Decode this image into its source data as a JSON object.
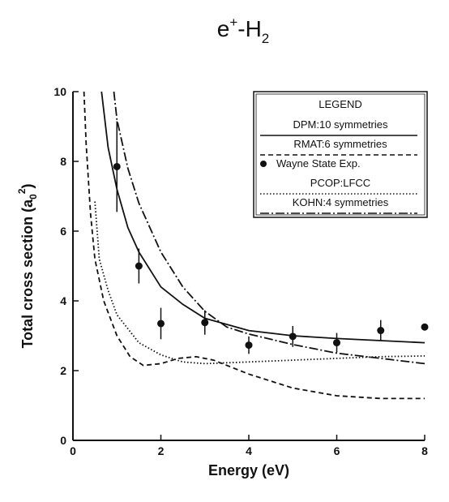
{
  "chart_data": {
    "type": "line",
    "title": [
      "e",
      "+",
      "-H",
      "2"
    ],
    "x_label": "Energy (eV)",
    "y_label": [
      "Total cross section (a",
      "0",
      "2",
      ")"
    ],
    "legend_title": "LEGEND",
    "xlim": [
      0,
      8
    ],
    "ylim": [
      0,
      10
    ],
    "xticks": [
      0,
      2,
      4,
      6,
      8
    ],
    "yticks": [
      0,
      2,
      4,
      6,
      8,
      10
    ],
    "legend": "upper right",
    "series": [
      {
        "name": "DPM:10 symmetries",
        "color": "#111111",
        "style": "solid",
        "x": [
          0.65,
          0.8,
          1,
          1.25,
          1.5,
          2,
          2.5,
          3,
          4,
          5,
          6,
          7,
          8
        ],
        "values": [
          10,
          8.4,
          7.2,
          6.1,
          5.4,
          4.4,
          3.9,
          3.5,
          3.15,
          3.0,
          2.92,
          2.86,
          2.8
        ]
      },
      {
        "name": "RMAT:6 symmetries",
        "color": "#111111",
        "style": "dashed",
        "x": [
          0.25,
          0.3,
          0.4,
          0.5,
          0.7,
          1,
          1.3,
          1.6,
          2,
          2.4,
          2.8,
          3.2,
          4,
          5,
          6,
          7,
          8
        ],
        "values": [
          10,
          8.5,
          6.5,
          5.2,
          4.0,
          3.0,
          2.4,
          2.15,
          2.2,
          2.35,
          2.4,
          2.3,
          1.9,
          1.5,
          1.28,
          1.2,
          1.2
        ]
      },
      {
        "name": "Wayne State Exp.",
        "color": "#111111",
        "style": "markers",
        "x": [
          1,
          1.5,
          2,
          3,
          4,
          5,
          6,
          7,
          8
        ],
        "values": [
          7.85,
          5.0,
          3.35,
          3.38,
          2.73,
          2.98,
          2.8,
          3.15,
          3.25
        ],
        "errors": [
          1.3,
          0.5,
          0.45,
          0.35,
          0.25,
          0.3,
          0.28,
          0.3,
          0.05
        ]
      },
      {
        "name": "PCOP:LFCC",
        "color": "#111111",
        "style": "dotted",
        "x": [
          0.5,
          0.6,
          0.8,
          1,
          1.5,
          2,
          2.5,
          3,
          4,
          5,
          6,
          7,
          8
        ],
        "values": [
          6.85,
          5.2,
          4.3,
          3.6,
          2.8,
          2.45,
          2.25,
          2.2,
          2.25,
          2.3,
          2.35,
          2.4,
          2.42
        ]
      },
      {
        "name": "KOHN:4 symmetries",
        "color": "#111111",
        "style": "dashdot",
        "x": [
          0.93,
          1,
          1.25,
          1.5,
          2,
          2.5,
          3,
          3.5,
          4,
          5,
          6,
          7,
          8
        ],
        "values": [
          10,
          9.2,
          7.8,
          6.8,
          5.4,
          4.4,
          3.7,
          3.25,
          3.05,
          2.75,
          2.5,
          2.35,
          2.2
        ]
      }
    ]
  }
}
